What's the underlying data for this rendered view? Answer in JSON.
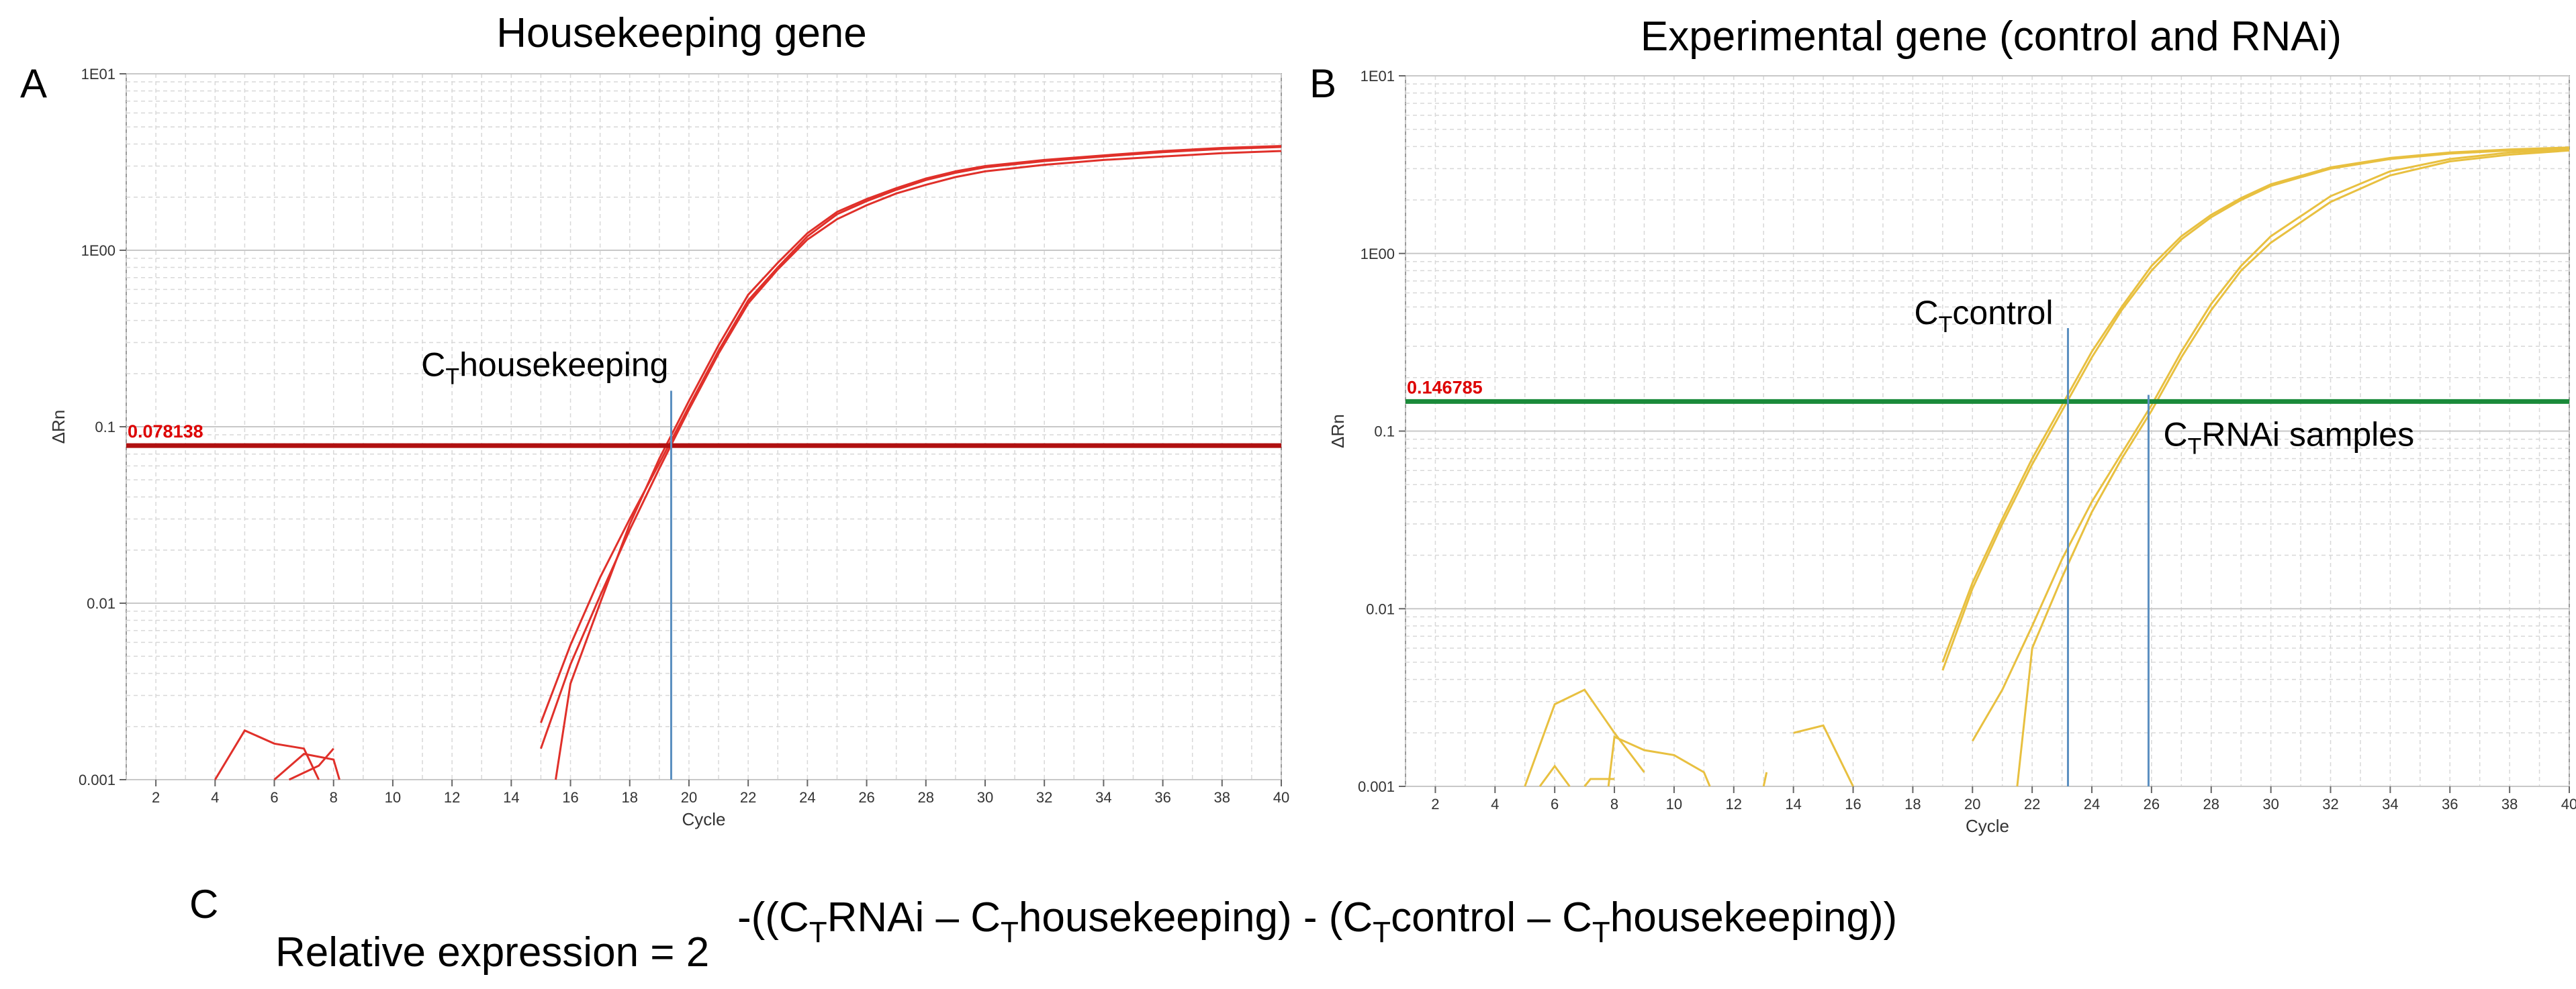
{
  "panels": [
    {
      "letter": "A",
      "title": "Housekeeping gene"
    },
    {
      "letter": "B",
      "title": "Experimental gene (control and RNAi)"
    }
  ],
  "colors": {
    "panel_a_curve": "#e0302a",
    "panel_a_threshold": "#b01010",
    "panel_b_curve": "#e8c040",
    "panel_b_threshold": "#1a8a3a",
    "ct_marker": "#5b8fc0",
    "threshold_label": "#dd0000",
    "grid": "#d8d8d8"
  },
  "formula": {
    "letter": "C",
    "lhs": "Relative expression = 2",
    "exp_1": "-((C",
    "exp_2": "RNAi – C",
    "exp_3": "housekeeping) - (C",
    "exp_4": "control – C",
    "exp_5": "housekeeping))",
    "sub": "T"
  },
  "chart_data": [
    {
      "type": "line",
      "title": "Housekeeping gene",
      "xlabel": "Cycle",
      "ylabel": "ΔRn",
      "xlim": [
        1,
        40
      ],
      "ylim": [
        0.001,
        10
      ],
      "yscale": "log",
      "xticks": [
        2,
        4,
        6,
        8,
        10,
        12,
        14,
        16,
        18,
        20,
        22,
        24,
        26,
        28,
        30,
        32,
        34,
        36,
        38,
        40
      ],
      "yticks": [
        {
          "value": 0.001,
          "label": "0.001"
        },
        {
          "value": 0.01,
          "label": "0.01"
        },
        {
          "value": 0.1,
          "label": "0.1"
        },
        {
          "value": 1,
          "label": "1E00"
        },
        {
          "value": 10,
          "label": "1E01"
        }
      ],
      "grid": true,
      "threshold": {
        "value": 0.078138,
        "label": "0.078138"
      },
      "ct_markers": [
        {
          "x": 19.4,
          "y_top": 0.16,
          "label_pre": "C",
          "label_sub": "T",
          "label_post": "housekeeping"
        }
      ],
      "series": [
        {
          "points": [
            [
              15,
              0.0021
            ],
            [
              16,
              0.0058
            ],
            [
              17,
              0.014
            ],
            [
              18,
              0.03
            ],
            [
              19,
              0.062
            ],
            [
              20,
              0.13
            ],
            [
              21,
              0.27
            ],
            [
              22,
              0.52
            ],
            [
              23,
              0.8
            ],
            [
              24,
              1.2
            ],
            [
              25,
              1.6
            ],
            [
              26,
              1.9
            ],
            [
              27,
              2.2
            ],
            [
              28,
              2.5
            ],
            [
              29,
              2.75
            ],
            [
              30,
              2.95
            ],
            [
              32,
              3.2
            ],
            [
              34,
              3.4
            ],
            [
              36,
              3.6
            ],
            [
              38,
              3.75
            ],
            [
              40,
              3.85
            ]
          ]
        },
        {
          "points": [
            [
              15,
              0.0015
            ],
            [
              16,
              0.0045
            ],
            [
              17,
              0.011
            ],
            [
              18,
              0.026
            ],
            [
              19,
              0.058
            ],
            [
              20,
              0.125
            ],
            [
              21,
              0.26
            ],
            [
              22,
              0.5
            ],
            [
              23,
              0.78
            ],
            [
              24,
              1.15
            ],
            [
              25,
              1.5
            ],
            [
              26,
              1.8
            ],
            [
              27,
              2.1
            ],
            [
              28,
              2.35
            ],
            [
              29,
              2.6
            ],
            [
              30,
              2.8
            ],
            [
              32,
              3.05
            ],
            [
              34,
              3.25
            ],
            [
              36,
              3.4
            ],
            [
              38,
              3.55
            ],
            [
              40,
              3.65
            ]
          ]
        },
        {
          "points": [
            [
              15.5,
              0.001
            ],
            [
              16,
              0.0035
            ],
            [
              17,
              0.01
            ],
            [
              18,
              0.028
            ],
            [
              19,
              0.066
            ],
            [
              20,
              0.14
            ],
            [
              21,
              0.29
            ],
            [
              22,
              0.56
            ],
            [
              23,
              0.85
            ],
            [
              24,
              1.25
            ],
            [
              25,
              1.65
            ],
            [
              26,
              1.95
            ],
            [
              27,
              2.25
            ],
            [
              28,
              2.55
            ],
            [
              29,
              2.8
            ],
            [
              30,
              3.0
            ],
            [
              32,
              3.25
            ],
            [
              34,
              3.45
            ],
            [
              36,
              3.65
            ],
            [
              38,
              3.8
            ],
            [
              40,
              3.9
            ]
          ]
        },
        {
          "points": [
            [
              4,
              0.001
            ],
            [
              5,
              0.0019
            ],
            [
              6,
              0.0016
            ],
            [
              7,
              0.0015
            ],
            [
              7.5,
              0.001
            ]
          ]
        },
        {
          "points": [
            [
              6,
              0.001
            ],
            [
              7,
              0.0014
            ],
            [
              8,
              0.0013
            ],
            [
              8.2,
              0.001
            ]
          ]
        },
        {
          "points": [
            [
              6.5,
              0.001
            ],
            [
              7.5,
              0.0012
            ],
            [
              8,
              0.0015
            ]
          ]
        }
      ]
    },
    {
      "type": "line",
      "title": "Experimental gene (control and RNAi)",
      "xlabel": "Cycle",
      "ylabel": "ΔRn",
      "xlim": [
        1,
        40
      ],
      "ylim": [
        0.001,
        10
      ],
      "yscale": "log",
      "xticks": [
        2,
        4,
        6,
        8,
        10,
        12,
        14,
        16,
        18,
        20,
        22,
        24,
        26,
        28,
        30,
        32,
        34,
        36,
        38,
        40
      ],
      "yticks": [
        {
          "value": 0.001,
          "label": "0.001"
        },
        {
          "value": 0.01,
          "label": "0.01"
        },
        {
          "value": 0.1,
          "label": "0.1"
        },
        {
          "value": 1,
          "label": "1E00"
        },
        {
          "value": 10,
          "label": "1E01"
        }
      ],
      "grid": true,
      "threshold": {
        "value": 0.146785,
        "label": "0.146785"
      },
      "ct_markers": [
        {
          "x": 23.2,
          "y_top": 0.38,
          "label_pre": "C",
          "label_sub": "T",
          "label_post": "control"
        },
        {
          "x": 25.9,
          "y_top": 0.16,
          "label_pre": "C",
          "label_sub": "T",
          "label_post": "RNAi samples"
        }
      ],
      "series": [
        {
          "points": [
            [
              19,
              0.0045
            ],
            [
              20,
              0.013
            ],
            [
              21,
              0.03
            ],
            [
              22,
              0.065
            ],
            [
              23,
              0.13
            ],
            [
              24,
              0.26
            ],
            [
              25,
              0.48
            ],
            [
              26,
              0.8
            ],
            [
              27,
              1.2
            ],
            [
              28,
              1.6
            ],
            [
              29,
              2.0
            ],
            [
              30,
              2.4
            ],
            [
              32,
              3.0
            ],
            [
              34,
              3.4
            ],
            [
              36,
              3.65
            ],
            [
              38,
              3.8
            ],
            [
              40,
              3.9
            ]
          ]
        },
        {
          "points": [
            [
              19,
              0.005
            ],
            [
              20,
              0.014
            ],
            [
              21,
              0.032
            ],
            [
              22,
              0.07
            ],
            [
              23,
              0.14
            ],
            [
              24,
              0.28
            ],
            [
              25,
              0.5
            ],
            [
              26,
              0.85
            ],
            [
              27,
              1.25
            ],
            [
              28,
              1.65
            ],
            [
              29,
              2.05
            ],
            [
              30,
              2.45
            ],
            [
              32,
              3.05
            ],
            [
              34,
              3.45
            ],
            [
              36,
              3.7
            ],
            [
              38,
              3.85
            ],
            [
              40,
              3.95
            ]
          ]
        },
        {
          "points": [
            [
              20,
              0.0018
            ],
            [
              21,
              0.0035
            ],
            [
              22,
              0.008
            ],
            [
              23,
              0.019
            ],
            [
              24,
              0.04
            ],
            [
              25,
              0.075
            ],
            [
              26,
              0.14
            ],
            [
              27,
              0.28
            ],
            [
              28,
              0.52
            ],
            [
              29,
              0.85
            ],
            [
              30,
              1.25
            ],
            [
              32,
              2.1
            ],
            [
              34,
              2.9
            ],
            [
              36,
              3.4
            ],
            [
              38,
              3.7
            ],
            [
              40,
              3.85
            ]
          ]
        },
        {
          "points": [
            [
              21.5,
              0.001
            ],
            [
              22,
              0.006
            ],
            [
              23,
              0.015
            ],
            [
              24,
              0.035
            ],
            [
              25,
              0.07
            ],
            [
              26,
              0.13
            ],
            [
              27,
              0.26
            ],
            [
              28,
              0.48
            ],
            [
              29,
              0.8
            ],
            [
              30,
              1.15
            ],
            [
              32,
              1.95
            ],
            [
              34,
              2.75
            ],
            [
              36,
              3.3
            ],
            [
              38,
              3.6
            ],
            [
              40,
              3.8
            ]
          ]
        },
        {
          "points": [
            [
              5,
              0.001
            ],
            [
              6,
              0.0029
            ],
            [
              7,
              0.0035
            ],
            [
              8,
              0.002
            ],
            [
              9,
              0.0012
            ]
          ]
        },
        {
          "points": [
            [
              5.5,
              0.001
            ],
            [
              6,
              0.0013
            ],
            [
              6.5,
              0.001
            ]
          ]
        },
        {
          "points": [
            [
              7.8,
              0.001
            ],
            [
              8,
              0.0019
            ],
            [
              9,
              0.0016
            ],
            [
              10,
              0.0015
            ],
            [
              11,
              0.0012
            ],
            [
              11.2,
              0.001
            ]
          ]
        },
        {
          "points": [
            [
              14,
              0.002
            ],
            [
              15,
              0.0022
            ],
            [
              16,
              0.001
            ]
          ]
        },
        {
          "points": [
            [
              13,
              0.001
            ],
            [
              13.1,
              0.0012
            ]
          ]
        },
        {
          "points": [
            [
              7,
              0.001
            ],
            [
              7.2,
              0.0011
            ],
            [
              8,
              0.0011
            ]
          ]
        }
      ]
    }
  ]
}
